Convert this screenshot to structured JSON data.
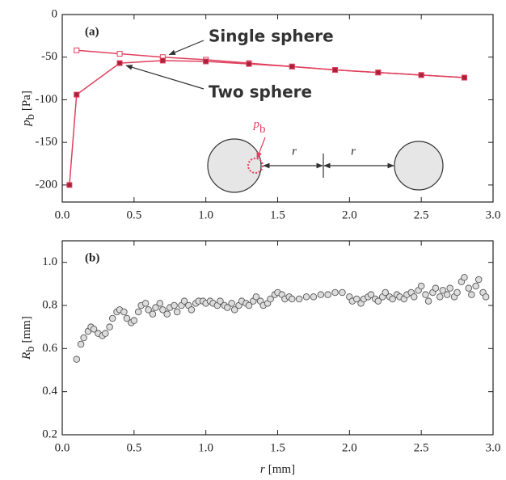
{
  "chart_data": [
    {
      "type": "line",
      "panel_label": "(a)",
      "ylabel": {
        "symbol": "p",
        "subscript": "b",
        "unit": "[Pa]"
      },
      "xlim": [
        0,
        3
      ],
      "ylim": [
        -220,
        0
      ],
      "xticks": [
        {
          "value": 0,
          "label": "0.0"
        },
        {
          "value": 0.5,
          "label": "0.5"
        },
        {
          "value": 1,
          "label": "1.0"
        },
        {
          "value": 1.5,
          "label": "1.5"
        },
        {
          "value": 2,
          "label": "2.0"
        },
        {
          "value": 2.5,
          "label": "2.5"
        },
        {
          "value": 3,
          "label": "3.0"
        }
      ],
      "yticks": [
        0,
        -50,
        -100,
        -150,
        -200
      ],
      "series": [
        {
          "name": "Single sphere",
          "color": "#e0405e",
          "marker_fill": "#ffffff",
          "x": [
            0.1,
            0.4,
            0.7,
            1.0,
            1.3,
            1.6,
            1.9,
            2.2,
            2.5,
            2.8
          ],
          "values": [
            -42,
            -46,
            -50,
            -53,
            -57,
            -61,
            -65,
            -68,
            -71,
            -74
          ]
        },
        {
          "name": "Two sphere",
          "color": "#e0405e",
          "marker_fill": "#a8203a",
          "x": [
            0.05,
            0.1,
            0.4,
            0.7,
            1.0,
            1.3,
            1.6,
            1.9,
            2.2,
            2.5,
            2.8
          ],
          "values": [
            -200,
            -94,
            -57,
            -54,
            -55,
            -58,
            -61,
            -65,
            -68,
            -71,
            -74
          ]
        }
      ],
      "inset": {
        "pressure_symbol": "p",
        "pressure_subscript": "b",
        "distance_labels": [
          "r",
          "r"
        ]
      }
    },
    {
      "type": "scatter",
      "panel_label": "(b)",
      "xlabel": {
        "symbol": "r",
        "unit": "[mm]"
      },
      "ylabel": {
        "symbol": "R",
        "subscript": "b",
        "unit": "[mm]"
      },
      "xlim": [
        0,
        3
      ],
      "ylim": [
        0.2,
        1.1
      ],
      "xticks": [
        {
          "value": 0,
          "label": "0.0"
        },
        {
          "value": 0.5,
          "label": "0.5"
        },
        {
          "value": 1,
          "label": "1.0"
        },
        {
          "value": 1.5,
          "label": "1.5"
        },
        {
          "value": 2,
          "label": "2.0"
        },
        {
          "value": 2.5,
          "label": "2.5"
        },
        {
          "value": 3,
          "label": "3.0"
        }
      ],
      "yticks": [
        0.2,
        0.4,
        0.6,
        0.8,
        {
          "value": 1,
          "label": "1.0"
        }
      ],
      "color": "#dddddd",
      "x": [
        0.1,
        0.13,
        0.15,
        0.18,
        0.2,
        0.22,
        0.25,
        0.28,
        0.3,
        0.33,
        0.35,
        0.38,
        0.4,
        0.43,
        0.45,
        0.48,
        0.5,
        0.53,
        0.55,
        0.58,
        0.6,
        0.63,
        0.65,
        0.68,
        0.7,
        0.73,
        0.75,
        0.78,
        0.8,
        0.83,
        0.85,
        0.88,
        0.9,
        0.93,
        0.95,
        0.98,
        1.0,
        1.03,
        1.05,
        1.08,
        1.1,
        1.13,
        1.15,
        1.18,
        1.2,
        1.23,
        1.25,
        1.28,
        1.3,
        1.33,
        1.35,
        1.38,
        1.4,
        1.43,
        1.45,
        1.48,
        1.5,
        1.53,
        1.55,
        1.58,
        1.6,
        1.65,
        1.7,
        1.75,
        1.8,
        1.85,
        1.9,
        1.95,
        2.0,
        2.02,
        2.05,
        2.08,
        2.1,
        2.13,
        2.15,
        2.18,
        2.2,
        2.23,
        2.25,
        2.28,
        2.3,
        2.33,
        2.35,
        2.38,
        2.4,
        2.43,
        2.45,
        2.48,
        2.5,
        2.53,
        2.55,
        2.58,
        2.6,
        2.63,
        2.65,
        2.68,
        2.7,
        2.73,
        2.75,
        2.78,
        2.8,
        2.83,
        2.85,
        2.88,
        2.9,
        2.93,
        2.95
      ],
      "values": [
        0.55,
        0.62,
        0.65,
        0.68,
        0.7,
        0.69,
        0.67,
        0.66,
        0.67,
        0.7,
        0.74,
        0.77,
        0.78,
        0.77,
        0.74,
        0.72,
        0.73,
        0.77,
        0.8,
        0.81,
        0.78,
        0.76,
        0.79,
        0.81,
        0.78,
        0.76,
        0.79,
        0.8,
        0.77,
        0.8,
        0.82,
        0.8,
        0.78,
        0.81,
        0.82,
        0.82,
        0.81,
        0.82,
        0.81,
        0.8,
        0.82,
        0.8,
        0.79,
        0.81,
        0.78,
        0.8,
        0.82,
        0.81,
        0.8,
        0.82,
        0.84,
        0.82,
        0.8,
        0.81,
        0.83,
        0.85,
        0.86,
        0.85,
        0.83,
        0.84,
        0.83,
        0.83,
        0.84,
        0.84,
        0.85,
        0.85,
        0.86,
        0.86,
        0.84,
        0.82,
        0.83,
        0.81,
        0.83,
        0.84,
        0.85,
        0.83,
        0.82,
        0.84,
        0.86,
        0.84,
        0.83,
        0.85,
        0.84,
        0.83,
        0.85,
        0.86,
        0.84,
        0.87,
        0.89,
        0.85,
        0.82,
        0.86,
        0.88,
        0.84,
        0.87,
        0.85,
        0.88,
        0.84,
        0.86,
        0.91,
        0.93,
        0.88,
        0.85,
        0.89,
        0.92,
        0.86,
        0.84
      ]
    }
  ]
}
